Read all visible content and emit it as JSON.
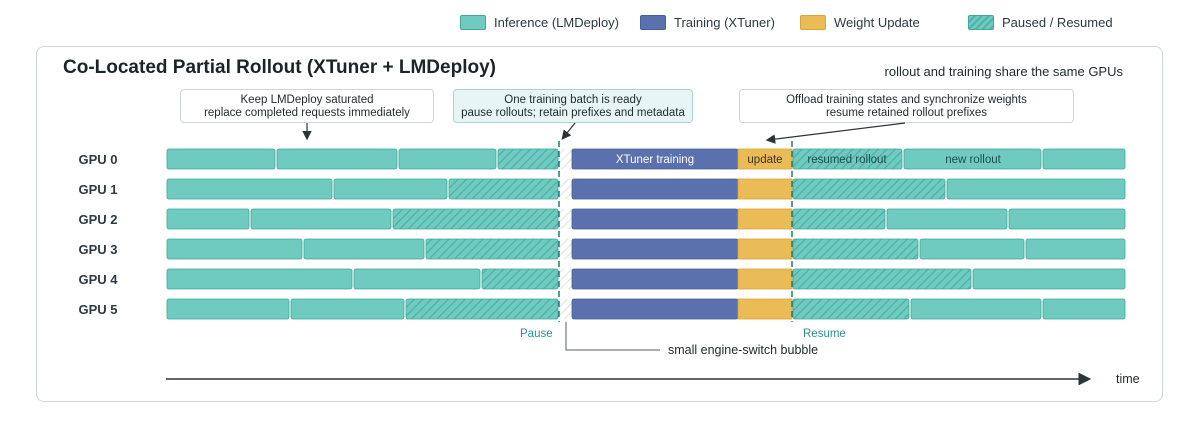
{
  "legend": [
    {
      "label": "Inference (LMDeploy)",
      "kind": "inference"
    },
    {
      "label": "Training (XTuner)",
      "kind": "training"
    },
    {
      "label": "Weight Update",
      "kind": "update"
    },
    {
      "label": "Paused / Resumed",
      "kind": "paused"
    }
  ],
  "colors": {
    "inference": "#6fcac0",
    "inference_border": "#3fa79b",
    "training": "#5b71ad",
    "update": "#ebbc55",
    "paused_hatch": "#3fa79b",
    "phase_line": "#217a77",
    "text_dark": "#1f2a2e"
  },
  "title": "Co-Located Partial Rollout (XTuner + LMDeploy)",
  "subtitle": "rollout and training share the same GPUs",
  "callouts": [
    {
      "lines": [
        "Keep LMDeploy saturated",
        "replace completed requests immediately"
      ]
    },
    {
      "lines": [
        "One training batch is ready",
        "pause rollouts; retain prefixes and metadata"
      ]
    },
    {
      "lines": [
        "Offload training states and synchronize weights",
        "resume retained rollout prefixes"
      ]
    }
  ],
  "gpus": [
    "GPU 0",
    "GPU 1",
    "GPU 2",
    "GPU 3",
    "GPU 4",
    "GPU 5"
  ],
  "segment_labels": {
    "training": "XTuner training",
    "update": "update",
    "resumed": "resumed rollout",
    "new": "new rollout"
  },
  "phases": {
    "pause": "Pause",
    "resume": "Resume"
  },
  "bubble_label": "small engine-switch bubble",
  "time_label": "time"
}
